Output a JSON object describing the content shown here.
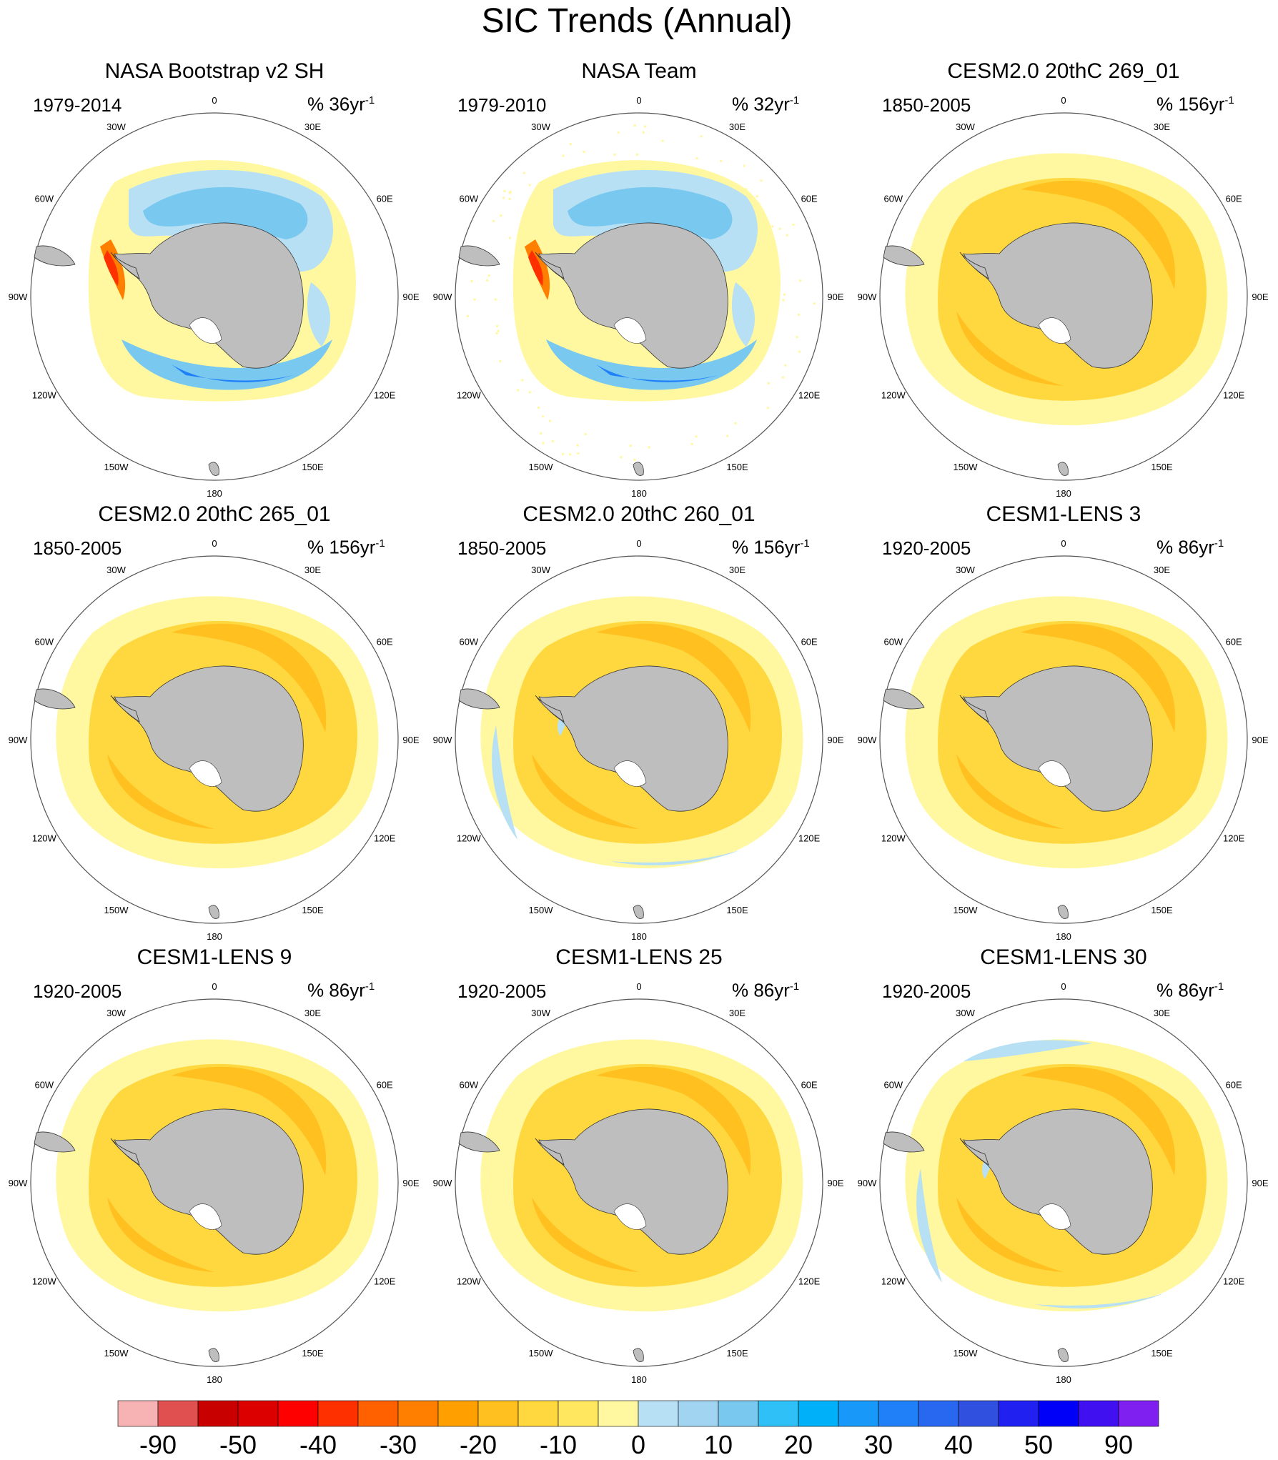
{
  "figure": {
    "title": "SIC Trends (Annual)"
  },
  "panels": [
    {
      "title": "NASA Bootstrap v2 SH",
      "period": "1979-2014",
      "units_prefix": "% 36yr",
      "units_exp": "-1",
      "pattern": "obs1"
    },
    {
      "title": "NASA Team",
      "period": "1979-2010",
      "units_prefix": "% 32yr",
      "units_exp": "-1",
      "pattern": "obs2"
    },
    {
      "title": "CESM2.0 20thC 269_01",
      "period": "1850-2005",
      "units_prefix": "% 156yr",
      "units_exp": "-1",
      "pattern": "model"
    },
    {
      "title": "CESM2.0 20thC 265_01",
      "period": "1850-2005",
      "units_prefix": "% 156yr",
      "units_exp": "-1",
      "pattern": "model"
    },
    {
      "title": "CESM2.0 20thC 260_01",
      "period": "1850-2005",
      "units_prefix": "% 156yr",
      "units_exp": "-1",
      "pattern": "model_weak"
    },
    {
      "title": "CESM1-LENS 3",
      "period": "1920-2005",
      "units_prefix": "% 86yr",
      "units_exp": "-1",
      "pattern": "model"
    },
    {
      "title": "CESM1-LENS 9",
      "period": "1920-2005",
      "units_prefix": "% 86yr",
      "units_exp": "-1",
      "pattern": "model"
    },
    {
      "title": "CESM1-LENS 25",
      "period": "1920-2005",
      "units_prefix": "% 86yr",
      "units_exp": "-1",
      "pattern": "model"
    },
    {
      "title": "CESM1-LENS 30",
      "period": "1920-2005",
      "units_prefix": "% 86yr",
      "units_exp": "-1",
      "pattern": "model_blue"
    }
  ],
  "longitude_labels": [
    "0",
    "30E",
    "60E",
    "90E",
    "120E",
    "150E",
    "180",
    "150W",
    "120W",
    "90W",
    "60W",
    "30W"
  ],
  "colorbar": {
    "colors": [
      "#f7b3b3",
      "#e05050",
      "#c80000",
      "#dc0000",
      "#ff0000",
      "#ff3000",
      "#ff6000",
      "#ff8000",
      "#ffa000",
      "#ffc020",
      "#ffd840",
      "#ffe860",
      "#fff8a0",
      "#b8e0f4",
      "#a0d4f0",
      "#78c8f0",
      "#30c0f8",
      "#00b0f8",
      "#1898f8",
      "#2080f8",
      "#2868f0",
      "#3050e0",
      "#2020f0",
      "#0000f8",
      "#4010f0",
      "#8020f0"
    ],
    "labels": [
      "-90",
      "-50",
      "-40",
      "-30",
      "-20",
      "-10",
      "0",
      "10",
      "20",
      "30",
      "40",
      "50",
      "90"
    ]
  },
  "colors": {
    "land": "#bebebe",
    "ocean": "#ffffff",
    "strong_warm": "#ffc020",
    "mid_warm": "#ffd840",
    "weak_warm": "#fff8a0",
    "weak_cool": "#b8e0f4",
    "mid_cool": "#78c8f0",
    "strong_cool": "#2080f8"
  }
}
